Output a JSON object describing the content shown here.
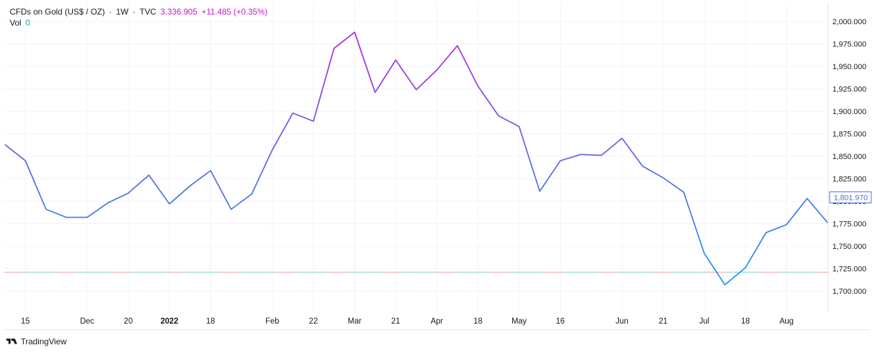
{
  "header": {
    "symbol": "CFDs on Gold (US$ / OZ)",
    "sep1": "·",
    "interval": "1W",
    "sep2": "·",
    "source": "TVC",
    "price": "3,336.905",
    "change": "+11.485 (+0.35%)",
    "vol_label": "Vol",
    "vol_value": "0"
  },
  "brand": {
    "name": "TradingView"
  },
  "chart_data": {
    "type": "line",
    "title": "CFDs on Gold (US$ / OZ) · 1W · TVC",
    "ylim": [
      1685,
      2010
    ],
    "y_ticks": [
      1700,
      1725,
      1750,
      1775,
      1800,
      1825,
      1850,
      1875,
      1900,
      1925,
      1950,
      1975,
      2000
    ],
    "y_tick_labels": [
      "1,700.000",
      "1,725.000",
      "1,750.000",
      "1,775.000",
      "1,800.000",
      "1,825.000",
      "1,850.000",
      "1,875.000",
      "1,900.000",
      "1,925.000",
      "1,950.000",
      "1,975.000",
      "2,000.000"
    ],
    "x_tick_labels": [
      "15",
      "Dec",
      "20",
      "2022",
      "18",
      "Feb",
      "22",
      "Mar",
      "21",
      "Apr",
      "18",
      "May",
      "16",
      "Jun",
      "21",
      "Jul",
      "18",
      "Aug"
    ],
    "x_tick_index": [
      1,
      4,
      6,
      8,
      10,
      13,
      15,
      17,
      19,
      21,
      23,
      25,
      27,
      30,
      32,
      34,
      36,
      38
    ],
    "series": [
      {
        "values": [
          1863,
          1845,
          1791,
          1782,
          1782,
          1798,
          1809,
          1829,
          1797,
          1817,
          1834,
          1791,
          1808,
          1857,
          1898,
          1889,
          1970,
          1988,
          1921,
          1957,
          1924,
          1946,
          1973,
          1928,
          1895,
          1883,
          1811,
          1845,
          1852,
          1851,
          1870,
          1839,
          1826,
          1810,
          1742,
          1707,
          1726,
          1765,
          1774,
          1803,
          1776
        ]
      }
    ],
    "last_value_label": "1,801.970",
    "baseline_value": 1721,
    "colors": {
      "line_low": "#2196f3",
      "line_high": "#9c27b0",
      "grid": "#f0f3fa",
      "baseline_up": "#26a69a",
      "baseline_down": "#ef5350",
      "last_label": "#4a6fd9"
    }
  }
}
